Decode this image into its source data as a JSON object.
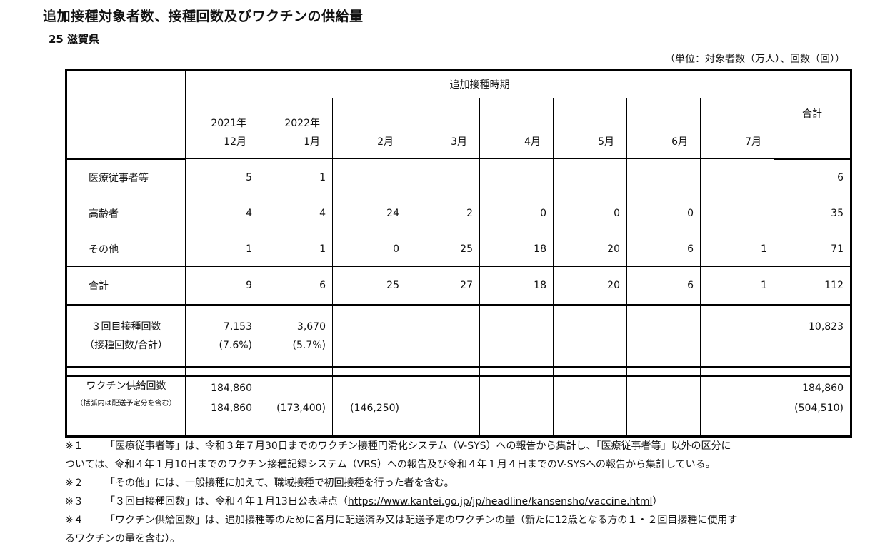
{
  "title": "追加接種対象者数、接種回数及びワクチンの供給量",
  "subtitle": "25 滋賀県",
  "unit": "（単位：対象者数（万人）、回数（回））",
  "period_header": "追加接種時期",
  "total_header": "合計",
  "months": [
    {
      "year": "2021年",
      "month": "12月"
    },
    {
      "year": "2022年",
      "month": "1月"
    },
    {
      "year": "",
      "month": "2月"
    },
    {
      "year": "",
      "month": "3月"
    },
    {
      "year": "",
      "month": "4月"
    },
    {
      "year": "",
      "month": "5月"
    },
    {
      "year": "",
      "month": "6月"
    },
    {
      "year": "",
      "month": "7月"
    }
  ],
  "rows": [
    {
      "label": "医療従事者等",
      "values": [
        "5",
        "1",
        "",
        "",
        "",
        "",
        "",
        ""
      ],
      "total": "6"
    },
    {
      "label": "高齢者",
      "values": [
        "4",
        "4",
        "24",
        "2",
        "0",
        "0",
        "0",
        ""
      ],
      "total": "35"
    },
    {
      "label": "その他",
      "values": [
        "1",
        "1",
        "0",
        "25",
        "18",
        "20",
        "6",
        "1"
      ],
      "total": "71"
    },
    {
      "label": "合計",
      "values": [
        "9",
        "6",
        "25",
        "27",
        "18",
        "20",
        "6",
        "1"
      ],
      "total": "112"
    }
  ],
  "third_dose": {
    "label1": "３回目接種回数",
    "label2": "（接種回数/合計）",
    "values": [
      {
        "count": "7,153",
        "pct": "(7.6%)"
      },
      {
        "count": "3,670",
        "pct": "(5.7%)"
      }
    ],
    "total": "10,823"
  },
  "supply": {
    "label1": "ワクチン供給回数",
    "label2": "（括弧内は配送予定分を含む）",
    "top": [
      "184,860",
      "",
      "",
      "",
      "",
      "",
      "",
      ""
    ],
    "bottom": [
      "184,860",
      "(173,400)",
      "(146,250)",
      "",
      "",
      "",
      "",
      ""
    ],
    "total_top": "184,860",
    "total_bottom": "(504,510)"
  },
  "notes": {
    "n1_mark": "※１",
    "n1_a": "「医療従事者等」は、令和３年７月30日までのワクチン接種円滑化システム（V-SYS）への報告から集計し、「医療従事者等」以外の区分に",
    "n1_b": "ついては、令和４年１月10日までのワクチン接種記録システム（VRS）への報告及び令和４年１月４日までのV-SYSへの報告から集計している。",
    "n2_mark": "※２",
    "n2": "「その他」には、一般接種に加えて、職域接種で初回接種を行った者を含む。",
    "n3_mark": "※３",
    "n3_pre": "「３回目接種回数」は、令和４年１月13日公表時点（",
    "n3_link": "https://www.kantei.go.jp/jp/headline/kansensho/vaccine.html",
    "n3_post": "）",
    "n4_mark": "※４",
    "n4_a": "「ワクチン供給回数」は、追加接種等のために各月に配送済み又は配送予定のワクチンの量（新たに12歳となる方の１・２回目接種に使用す",
    "n4_b": "るワクチンの量を含む）。"
  }
}
